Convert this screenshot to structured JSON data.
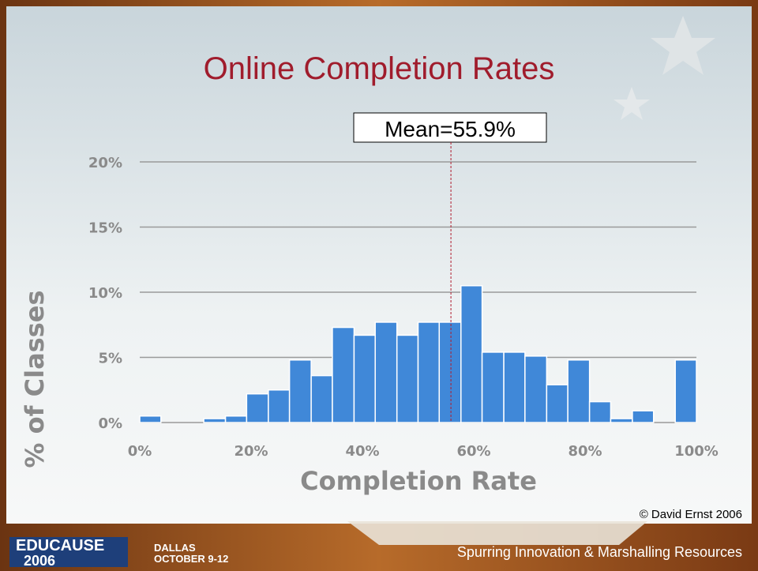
{
  "chart_data": {
    "type": "histogram",
    "title": "Online Completion Rates",
    "x_label": "Completion Rate",
    "y_label": "% of Classes",
    "bins": [
      0,
      3.8,
      7.7,
      11.5,
      15.4,
      19.2,
      23.1,
      26.9,
      30.8,
      34.6,
      38.5,
      42.3,
      46.2,
      50,
      53.8,
      57.7,
      61.5,
      65.4,
      69.2,
      73.1,
      76.9,
      80.8,
      84.6,
      88.5,
      92.3,
      96.2,
      100
    ],
    "values": [
      0.5,
      0,
      0,
      0.3,
      0.5,
      2.2,
      2.5,
      4.8,
      3.6,
      7.3,
      6.7,
      7.7,
      6.7,
      7.7,
      7.7,
      10.5,
      5.4,
      5.4,
      5.1,
      2.9,
      4.8,
      1.6,
      0.3,
      0.9,
      0,
      4.8
    ],
    "color": "#4088d8",
    "xlim": [
      0,
      100
    ],
    "ylim": [
      0,
      20
    ],
    "xticks": [
      {
        "value": 0,
        "label": "0%"
      },
      {
        "value": 20,
        "label": "20%"
      },
      {
        "value": 40,
        "label": "40%"
      },
      {
        "value": 60,
        "label": "60%"
      },
      {
        "value": 80,
        "label": "80%"
      },
      {
        "value": 100,
        "label": "100%"
      }
    ],
    "yticks": [
      {
        "value": 0,
        "label": "0%"
      },
      {
        "value": 5,
        "label": "5%"
      },
      {
        "value": 10,
        "label": "10%"
      },
      {
        "value": 15,
        "label": "15%"
      },
      {
        "value": 20,
        "label": "20%"
      }
    ],
    "grid": true,
    "mean": {
      "value": 55.9,
      "label": "Mean=55.9%"
    }
  },
  "slide": {
    "copyright": "© David Ernst 2006",
    "logo": "EDUCAUSE",
    "year": "2006",
    "city": "Dallas",
    "dates": "October 9-12",
    "tagline": "Spurring Innovation & Marshalling Resources"
  }
}
